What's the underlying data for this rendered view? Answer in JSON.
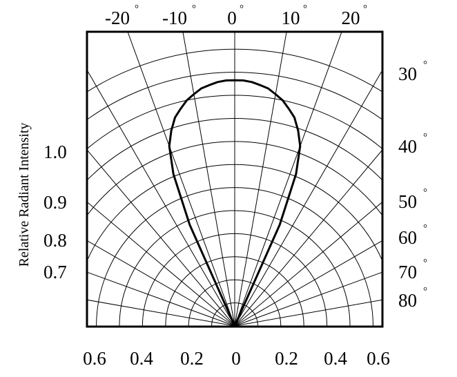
{
  "chart_data": {
    "type": "polar-radiation",
    "ylabel": "Relative Radiant Intensity",
    "bottom_ticks": [
      "0.6",
      "0.4",
      "0.2",
      "0",
      "0.2",
      "0.4",
      "0.6"
    ],
    "top_angle_ticks": [
      {
        "value": "-20",
        "unit": "°"
      },
      {
        "value": "-10",
        "unit": "°"
      },
      {
        "value": "0",
        "unit": "°"
      },
      {
        "value": "10",
        "unit": "°"
      },
      {
        "value": "20",
        "unit": "°"
      }
    ],
    "right_angle_ticks": [
      {
        "value": "30",
        "unit": "°"
      },
      {
        "value": "40",
        "unit": "°"
      },
      {
        "value": "50",
        "unit": "°"
      },
      {
        "value": "60",
        "unit": "°"
      },
      {
        "value": "70",
        "unit": "°"
      },
      {
        "value": "80",
        "unit": "°"
      }
    ],
    "left_intensity_ticks": [
      "1.0",
      "0.9",
      "0.8",
      "0.7"
    ],
    "rings": [
      0.1,
      0.2,
      0.3,
      0.4,
      0.5,
      0.6,
      0.7,
      0.8,
      0.9,
      1.0,
      1.1,
      1.2
    ],
    "radial_angles_deg": [
      -80,
      -70,
      -60,
      -50,
      -40,
      -30,
      -20,
      -10,
      0,
      10,
      20,
      30,
      40,
      50,
      60,
      70,
      80
    ],
    "pattern": {
      "angle_deg": [
        -24,
        -22,
        -20,
        -18,
        -16,
        -14,
        -12,
        -10,
        -8,
        -6,
        -4,
        -2,
        0,
        2,
        4,
        6,
        8,
        10,
        12,
        14,
        16,
        18,
        20,
        22,
        24
      ],
      "intensity": [
        0.48,
        0.71,
        0.83,
        0.89,
        0.94,
        0.97,
        1.0,
        1.02,
        1.04,
        1.05,
        1.06,
        1.065,
        1.065,
        1.065,
        1.06,
        1.05,
        1.04,
        1.02,
        1.0,
        0.97,
        0.94,
        0.89,
        0.83,
        0.71,
        0.48
      ]
    }
  }
}
